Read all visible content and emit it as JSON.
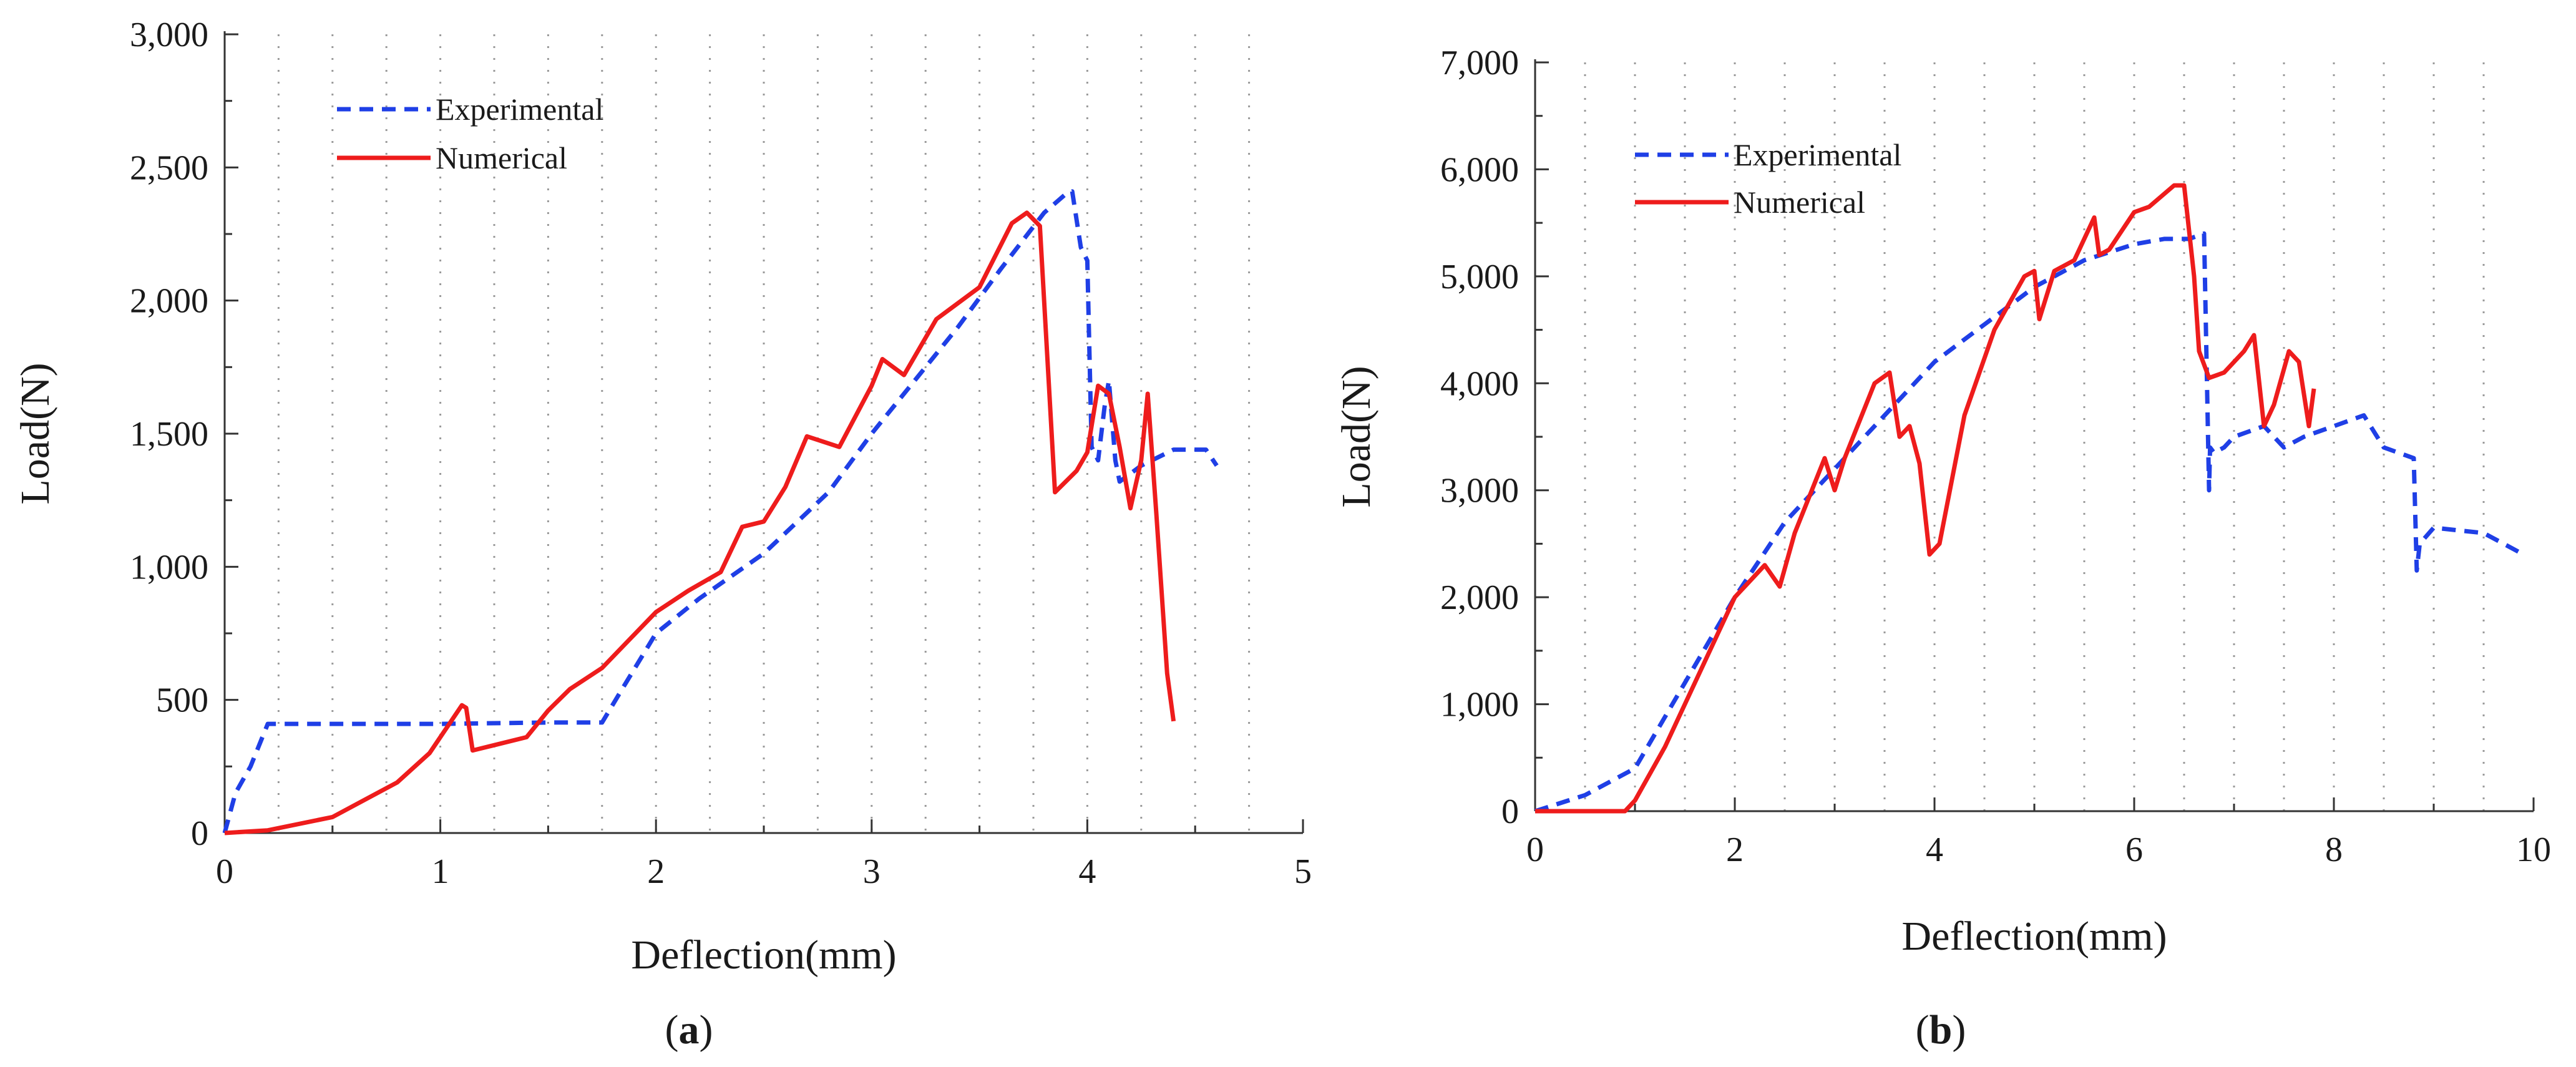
{
  "chart_data": [
    {
      "type": "line",
      "caption": "a",
      "xlabel": "Deflection(mm)",
      "ylabel": "Load(N)",
      "xlim": [
        0,
        5
      ],
      "ylim": [
        0,
        3000
      ],
      "xticks": [
        0,
        1,
        2,
        3,
        4,
        5
      ],
      "xtick_labels": [
        "0",
        "1",
        "2",
        "3",
        "4",
        "5"
      ],
      "yticks": [
        0,
        500,
        1000,
        1500,
        2000,
        2500,
        3000
      ],
      "ytick_labels": [
        "0",
        "500",
        "1,000",
        "1,500",
        "2,000",
        "2,500",
        "3,000"
      ],
      "grid": "vertical dotted",
      "legend_position": "top-left",
      "series": [
        {
          "name": "Experimental",
          "color": "#1f3fe6",
          "style": "dashed",
          "x": [
            0,
            0.05,
            0.12,
            0.2,
            0.5,
            1.0,
            1.5,
            1.75,
            1.85,
            2.0,
            2.2,
            2.5,
            2.8,
            3.0,
            3.2,
            3.4,
            3.6,
            3.8,
            3.9,
            3.93,
            3.97,
            4.0,
            4.02,
            4.05,
            4.08,
            4.1,
            4.13,
            4.15,
            4.25,
            4.4,
            4.55,
            4.6
          ],
          "y": [
            0,
            150,
            250,
            410,
            410,
            410,
            415,
            415,
            550,
            750,
            880,
            1050,
            1280,
            1500,
            1700,
            1900,
            2120,
            2330,
            2400,
            2410,
            2200,
            2150,
            1450,
            1400,
            1600,
            1700,
            1400,
            1320,
            1380,
            1440,
            1440,
            1380
          ]
        },
        {
          "name": "Numerical",
          "color": "#ee1c1c",
          "style": "solid",
          "x": [
            0,
            0.2,
            0.5,
            0.8,
            0.95,
            1.05,
            1.1,
            1.12,
            1.15,
            1.25,
            1.4,
            1.5,
            1.6,
            1.75,
            2.0,
            2.15,
            2.3,
            2.4,
            2.5,
            2.6,
            2.7,
            2.85,
            3.0,
            3.05,
            3.15,
            3.3,
            3.5,
            3.65,
            3.72,
            3.78,
            3.85,
            3.95,
            4.0,
            4.05,
            4.1,
            4.15,
            4.2,
            4.25,
            4.28,
            4.32,
            4.37,
            4.4
          ],
          "y": [
            0,
            10,
            60,
            190,
            300,
            420,
            480,
            470,
            310,
            330,
            360,
            460,
            540,
            620,
            830,
            910,
            980,
            1150,
            1170,
            1300,
            1490,
            1450,
            1680,
            1780,
            1720,
            1930,
            2050,
            2290,
            2330,
            2280,
            1280,
            1360,
            1430,
            1680,
            1650,
            1450,
            1220,
            1400,
            1650,
            1200,
            600,
            420
          ]
        }
      ]
    },
    {
      "type": "line",
      "caption": "b",
      "xlabel": "Deflection(mm)",
      "ylabel": "Load(N)",
      "xlim": [
        0,
        10
      ],
      "ylim": [
        0,
        7000
      ],
      "xticks": [
        0,
        2,
        4,
        6,
        8,
        10
      ],
      "xtick_labels": [
        "0",
        "2",
        "4",
        "6",
        "8",
        "10"
      ],
      "yticks": [
        0,
        1000,
        2000,
        3000,
        4000,
        5000,
        6000,
        7000
      ],
      "ytick_labels": [
        "0",
        "1,000",
        "2,000",
        "3,000",
        "4,000",
        "5,000",
        "6,000",
        "7,000"
      ],
      "grid": "vertical dotted",
      "legend_position": "top-left",
      "series": [
        {
          "name": "Experimental",
          "color": "#1f3fe6",
          "style": "dashed",
          "x": [
            0,
            0.5,
            1.0,
            1.5,
            2.0,
            2.5,
            3.0,
            3.5,
            4.0,
            4.5,
            5.0,
            5.5,
            6.0,
            6.3,
            6.55,
            6.7,
            6.75,
            6.76,
            6.8,
            6.9,
            7.0,
            7.3,
            7.5,
            7.7,
            8.0,
            8.3,
            8.5,
            8.8,
            8.83,
            8.86,
            9.0,
            9.5,
            9.9
          ],
          "y": [
            0,
            150,
            400,
            1200,
            2000,
            2700,
            3200,
            3700,
            4200,
            4550,
            4900,
            5150,
            5300,
            5350,
            5350,
            5400,
            3000,
            3400,
            3350,
            3400,
            3500,
            3600,
            3400,
            3500,
            3600,
            3700,
            3400,
            3300,
            2250,
            2500,
            2650,
            2600,
            2400
          ]
        },
        {
          "name": "Numerical",
          "color": "#ee1c1c",
          "style": "solid",
          "x": [
            0,
            0.9,
            1.0,
            1.3,
            1.6,
            2.0,
            2.3,
            2.45,
            2.6,
            2.9,
            3.0,
            3.1,
            3.4,
            3.55,
            3.65,
            3.75,
            3.85,
            3.95,
            4.05,
            4.3,
            4.6,
            4.9,
            5.0,
            5.05,
            5.2,
            5.4,
            5.6,
            5.65,
            5.75,
            6.0,
            6.15,
            6.4,
            6.5,
            6.6,
            6.65,
            6.75,
            6.9,
            7.1,
            7.2,
            7.3,
            7.4,
            7.55,
            7.65,
            7.75,
            7.8
          ],
          "y": [
            0,
            0,
            100,
            600,
            1200,
            2000,
            2300,
            2100,
            2600,
            3300,
            3000,
            3300,
            4000,
            4100,
            3500,
            3600,
            3250,
            2400,
            2500,
            3700,
            4500,
            5000,
            5050,
            4600,
            5050,
            5150,
            5550,
            5200,
            5250,
            5600,
            5650,
            5850,
            5850,
            5000,
            4300,
            4050,
            4100,
            4300,
            4450,
            3600,
            3800,
            4300,
            4200,
            3600,
            3950
          ]
        }
      ]
    }
  ]
}
